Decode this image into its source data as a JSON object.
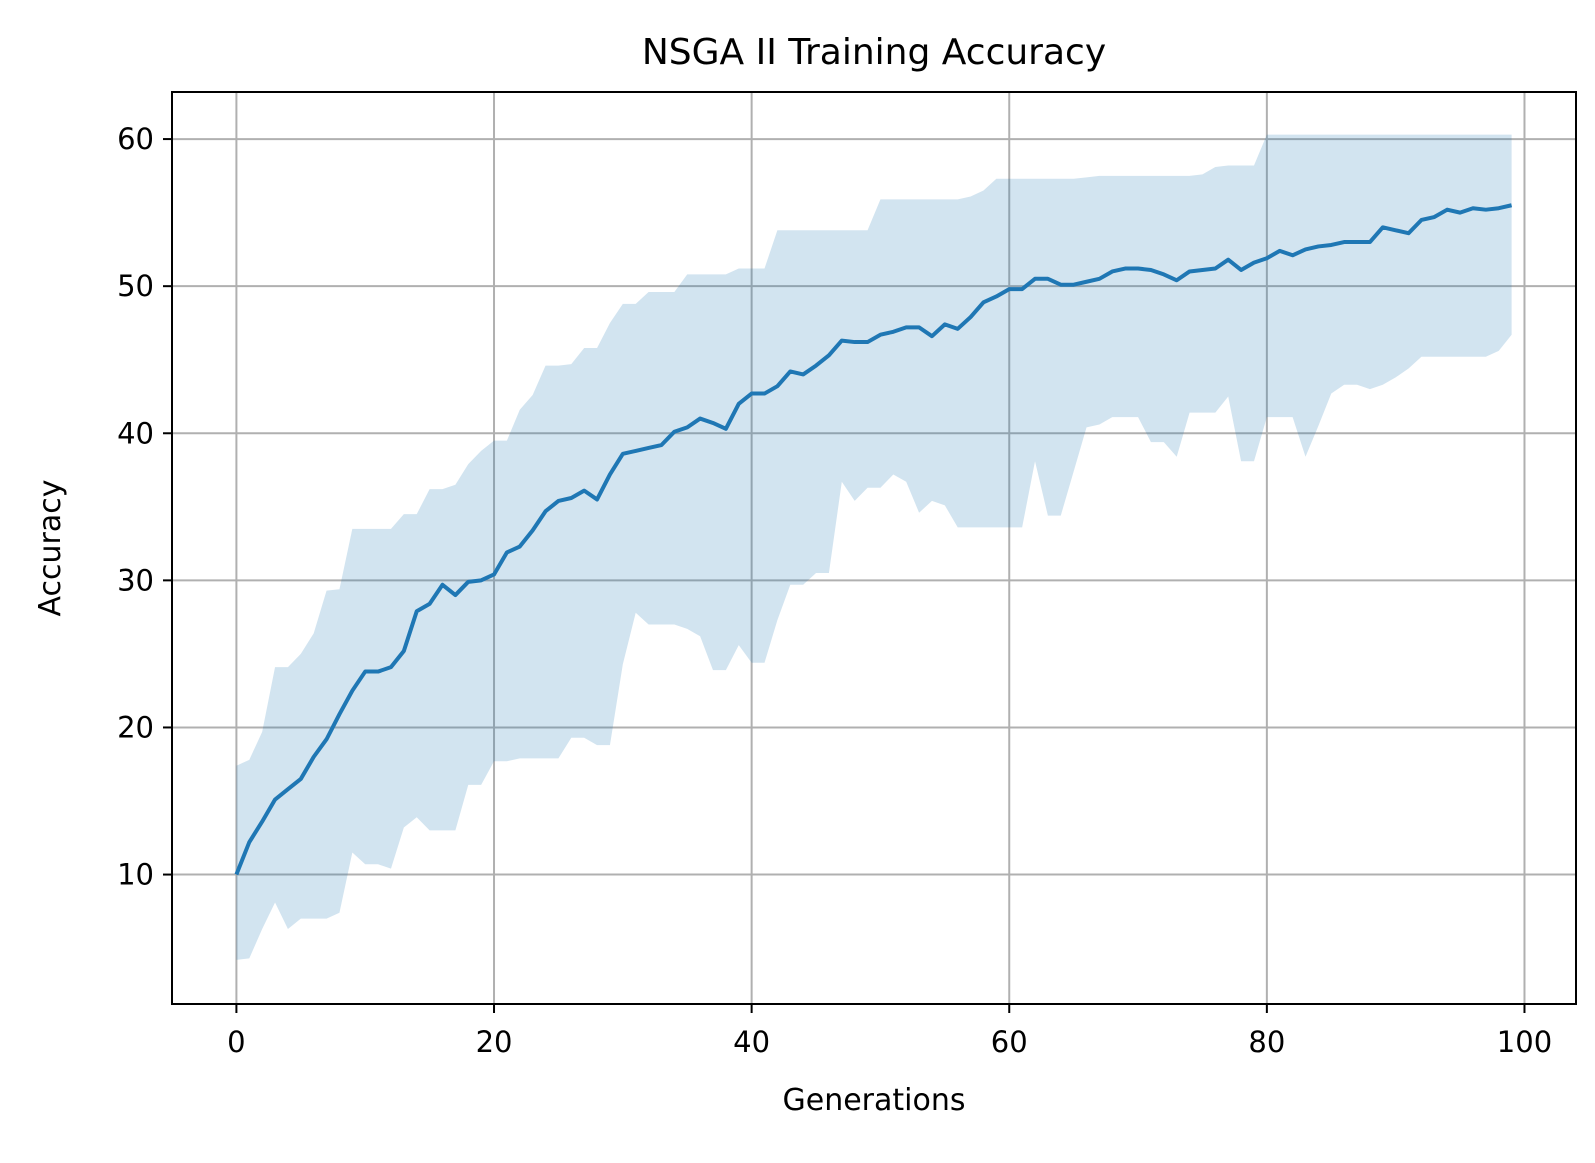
{
  "chart_data": {
    "type": "line",
    "title": "NSGA II Training Accuracy",
    "xlabel": "Generations",
    "ylabel": "Accuracy",
    "xlim": [
      -5,
      104
    ],
    "ylim": [
      1.2,
      63.2
    ],
    "xticks": [
      0,
      20,
      40,
      60,
      80,
      100
    ],
    "yticks": [
      10,
      20,
      30,
      40,
      50,
      60
    ],
    "grid": true,
    "colors": {
      "line": "#1f77b4",
      "band": "#1f77b4",
      "grid": "#b0b0b0",
      "axes": "#000000"
    },
    "x": [
      0,
      1,
      2,
      3,
      4,
      5,
      6,
      7,
      8,
      9,
      10,
      11,
      12,
      13,
      14,
      15,
      16,
      17,
      18,
      19,
      20,
      21,
      22,
      23,
      24,
      25,
      26,
      27,
      28,
      29,
      30,
      31,
      32,
      33,
      34,
      35,
      36,
      37,
      38,
      39,
      40,
      41,
      42,
      43,
      44,
      45,
      46,
      47,
      48,
      49,
      50,
      51,
      52,
      53,
      54,
      55,
      56,
      57,
      58,
      59,
      60,
      61,
      62,
      63,
      64,
      65,
      66,
      67,
      68,
      69,
      70,
      71,
      72,
      73,
      74,
      75,
      76,
      77,
      78,
      79,
      80,
      81,
      82,
      83,
      84,
      85,
      86,
      87,
      88,
      89,
      90,
      91,
      92,
      93,
      94,
      95,
      96,
      97,
      98,
      99
    ],
    "series": [
      {
        "values": [
          10.0,
          12.2,
          13.6,
          15.1,
          15.8,
          16.5,
          18.0,
          19.2,
          20.9,
          22.5,
          23.8,
          23.8,
          24.1,
          25.2,
          27.9,
          28.4,
          29.7,
          29.0,
          29.9,
          30.0,
          30.4,
          31.9,
          32.3,
          33.4,
          34.7,
          35.4,
          35.6,
          36.1,
          35.5,
          37.2,
          38.6,
          38.8,
          39.0,
          39.2,
          40.1,
          40.4,
          41.0,
          40.7,
          40.3,
          42.0,
          42.7,
          42.7,
          43.2,
          44.2,
          44.0,
          44.6,
          45.3,
          46.3,
          46.2,
          46.2,
          46.7,
          46.9,
          47.2,
          47.2,
          46.6,
          47.4,
          47.1,
          47.9,
          48.9,
          49.3,
          49.8,
          49.8,
          50.5,
          50.5,
          50.1,
          50.1,
          50.3,
          50.5,
          51.0,
          51.2,
          51.2,
          51.1,
          50.8,
          50.4,
          51.0,
          51.1,
          51.2,
          51.8,
          51.1,
          51.6,
          51.9,
          52.4,
          52.1,
          52.5,
          52.7,
          52.8,
          53.0,
          53.0,
          53.0,
          54.0,
          53.8,
          53.6,
          54.5,
          54.7,
          55.2,
          55.0,
          55.3,
          55.2,
          55.3,
          55.5
        ]
      }
    ],
    "band": {
      "upper": [
        17.4,
        17.8,
        19.7,
        24.1,
        24.1,
        25.0,
        26.4,
        29.3,
        29.4,
        33.5,
        33.5,
        33.5,
        33.5,
        34.5,
        34.5,
        36.2,
        36.2,
        36.5,
        37.9,
        38.8,
        39.5,
        39.5,
        41.6,
        42.6,
        44.6,
        44.6,
        44.7,
        45.8,
        45.8,
        47.5,
        48.8,
        48.8,
        49.6,
        49.6,
        49.6,
        50.8,
        50.8,
        50.8,
        50.8,
        51.2,
        51.2,
        51.2,
        53.8,
        53.8,
        53.8,
        53.8,
        53.8,
        53.8,
        53.8,
        53.8,
        55.9,
        55.9,
        55.9,
        55.9,
        55.9,
        55.9,
        55.9,
        56.1,
        56.5,
        57.3,
        57.3,
        57.3,
        57.3,
        57.3,
        57.3,
        57.3,
        57.4,
        57.5,
        57.5,
        57.5,
        57.5,
        57.5,
        57.5,
        57.5,
        57.5,
        57.6,
        58.1,
        58.2,
        58.2,
        58.2,
        60.3,
        60.3,
        60.3,
        60.3,
        60.3,
        60.3,
        60.3,
        60.3,
        60.3,
        60.3,
        60.3,
        60.3,
        60.3,
        60.3,
        60.3,
        60.3,
        60.3,
        60.3,
        60.3,
        60.3
      ],
      "lower": [
        4.2,
        4.3,
        6.3,
        8.1,
        6.3,
        7.0,
        7.0,
        7.0,
        7.4,
        11.5,
        10.7,
        10.7,
        10.4,
        13.2,
        13.9,
        13.0,
        13.0,
        13.0,
        16.1,
        16.1,
        17.7,
        17.7,
        17.9,
        17.9,
        17.9,
        17.9,
        19.3,
        19.3,
        18.8,
        18.8,
        24.3,
        27.8,
        27.0,
        27.0,
        27.0,
        26.7,
        26.2,
        23.9,
        23.9,
        25.6,
        24.4,
        24.4,
        27.3,
        29.7,
        29.7,
        30.5,
        30.5,
        36.7,
        35.4,
        36.3,
        36.3,
        37.2,
        36.7,
        34.6,
        35.4,
        35.1,
        33.6,
        33.6,
        33.6,
        33.6,
        33.6,
        33.6,
        38.1,
        34.4,
        34.4,
        37.4,
        40.4,
        40.6,
        41.1,
        41.1,
        41.1,
        39.4,
        39.4,
        38.4,
        41.4,
        41.4,
        41.4,
        42.5,
        38.1,
        38.1,
        41.1,
        41.1,
        41.1,
        38.4,
        40.5,
        42.7,
        43.3,
        43.3,
        43.0,
        43.3,
        43.8,
        44.4,
        45.2,
        45.2,
        45.2,
        45.2,
        45.2,
        45.2,
        45.6,
        46.7
      ]
    }
  }
}
